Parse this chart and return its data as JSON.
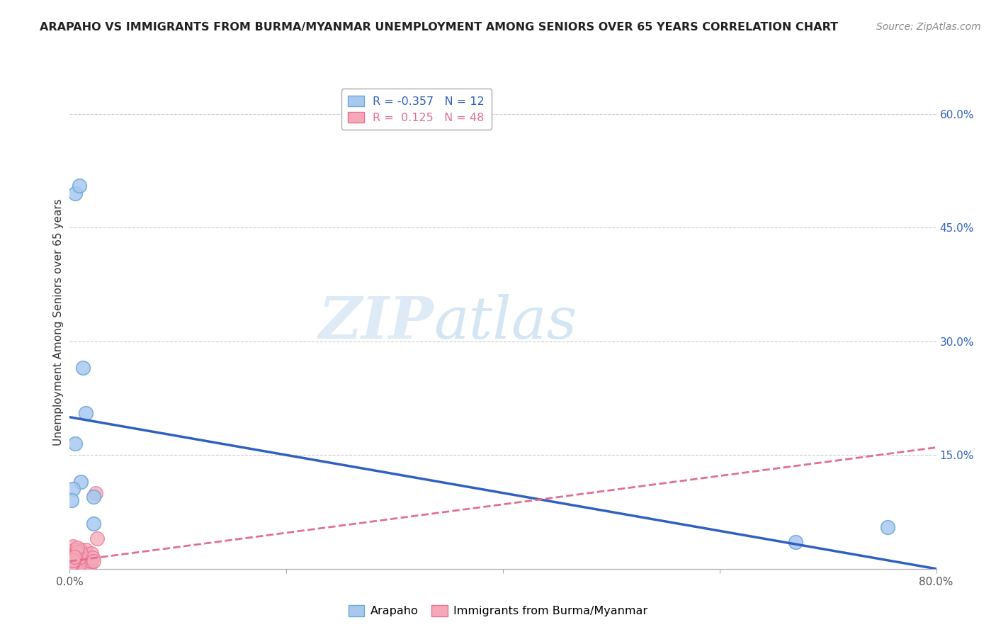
{
  "title": "ARAPAHO VS IMMIGRANTS FROM BURMA/MYANMAR UNEMPLOYMENT AMONG SENIORS OVER 65 YEARS CORRELATION CHART",
  "source": "Source: ZipAtlas.com",
  "ylabel": "Unemployment Among Seniors over 65 years",
  "background_color": "#ffffff",
  "arapaho_color": "#a8c8f0",
  "arapaho_edge_color": "#6aaad4",
  "burma_color": "#f5a8b8",
  "burma_edge_color": "#e87090",
  "arapaho_line_color": "#3060c0",
  "burma_line_color": "#e07090",
  "R_arapaho": -0.357,
  "N_arapaho": 12,
  "R_burma": 0.125,
  "N_burma": 48,
  "xlim": [
    0.0,
    0.8
  ],
  "ylim": [
    0.0,
    0.65
  ],
  "yticks_right": [
    0.0,
    0.15,
    0.3,
    0.45,
    0.6
  ],
  "ytick_labels_right": [
    "",
    "15.0%",
    "30.0%",
    "45.0%",
    "60.0%"
  ],
  "xticks": [
    0.0,
    0.2,
    0.4,
    0.6,
    0.8
  ],
  "xtick_labels_edge": [
    "0.0%",
    "80.0%"
  ],
  "arapaho_x": [
    0.005,
    0.009,
    0.012,
    0.005,
    0.015,
    0.01,
    0.022,
    0.022,
    0.755,
    0.67,
    0.003,
    0.002
  ],
  "arapaho_y": [
    0.495,
    0.505,
    0.265,
    0.165,
    0.205,
    0.115,
    0.095,
    0.06,
    0.055,
    0.035,
    0.105,
    0.09
  ],
  "burma_x": [
    0.001,
    0.002,
    0.003,
    0.003,
    0.004,
    0.005,
    0.005,
    0.006,
    0.007,
    0.008,
    0.009,
    0.01,
    0.01,
    0.011,
    0.012,
    0.012,
    0.013,
    0.014,
    0.015,
    0.015,
    0.016,
    0.017,
    0.018,
    0.019,
    0.02,
    0.02,
    0.021,
    0.022,
    0.003,
    0.004,
    0.005,
    0.006,
    0.007,
    0.008,
    0.009,
    0.01,
    0.002,
    0.003,
    0.004,
    0.005,
    0.006,
    0.007,
    0.024,
    0.025,
    0.001,
    0.002,
    0.003,
    0.004
  ],
  "burma_y": [
    0.005,
    0.01,
    0.015,
    0.02,
    0.01,
    0.005,
    0.015,
    0.025,
    0.02,
    0.015,
    0.01,
    0.005,
    0.025,
    0.015,
    0.02,
    0.01,
    0.005,
    0.015,
    0.02,
    0.025,
    0.005,
    0.01,
    0.015,
    0.005,
    0.01,
    0.02,
    0.015,
    0.01,
    0.03,
    0.025,
    0.02,
    0.015,
    0.01,
    0.005,
    0.015,
    0.02,
    0.005,
    0.008,
    0.012,
    0.018,
    0.022,
    0.028,
    0.1,
    0.04,
    0.003,
    0.007,
    0.011,
    0.016
  ],
  "arapaho_trend_x": [
    0.0,
    0.8
  ],
  "arapaho_trend_y": [
    0.2,
    0.0
  ],
  "burma_trend_x": [
    0.0,
    0.8
  ],
  "burma_trend_y": [
    0.01,
    0.16
  ],
  "watermark_zip": "ZIP",
  "watermark_atlas": "atlas",
  "grid_color": "#cccccc",
  "title_fontsize": 11.5,
  "source_fontsize": 10,
  "tick_fontsize": 11,
  "ylabel_fontsize": 11,
  "legend_fontsize": 11.5
}
